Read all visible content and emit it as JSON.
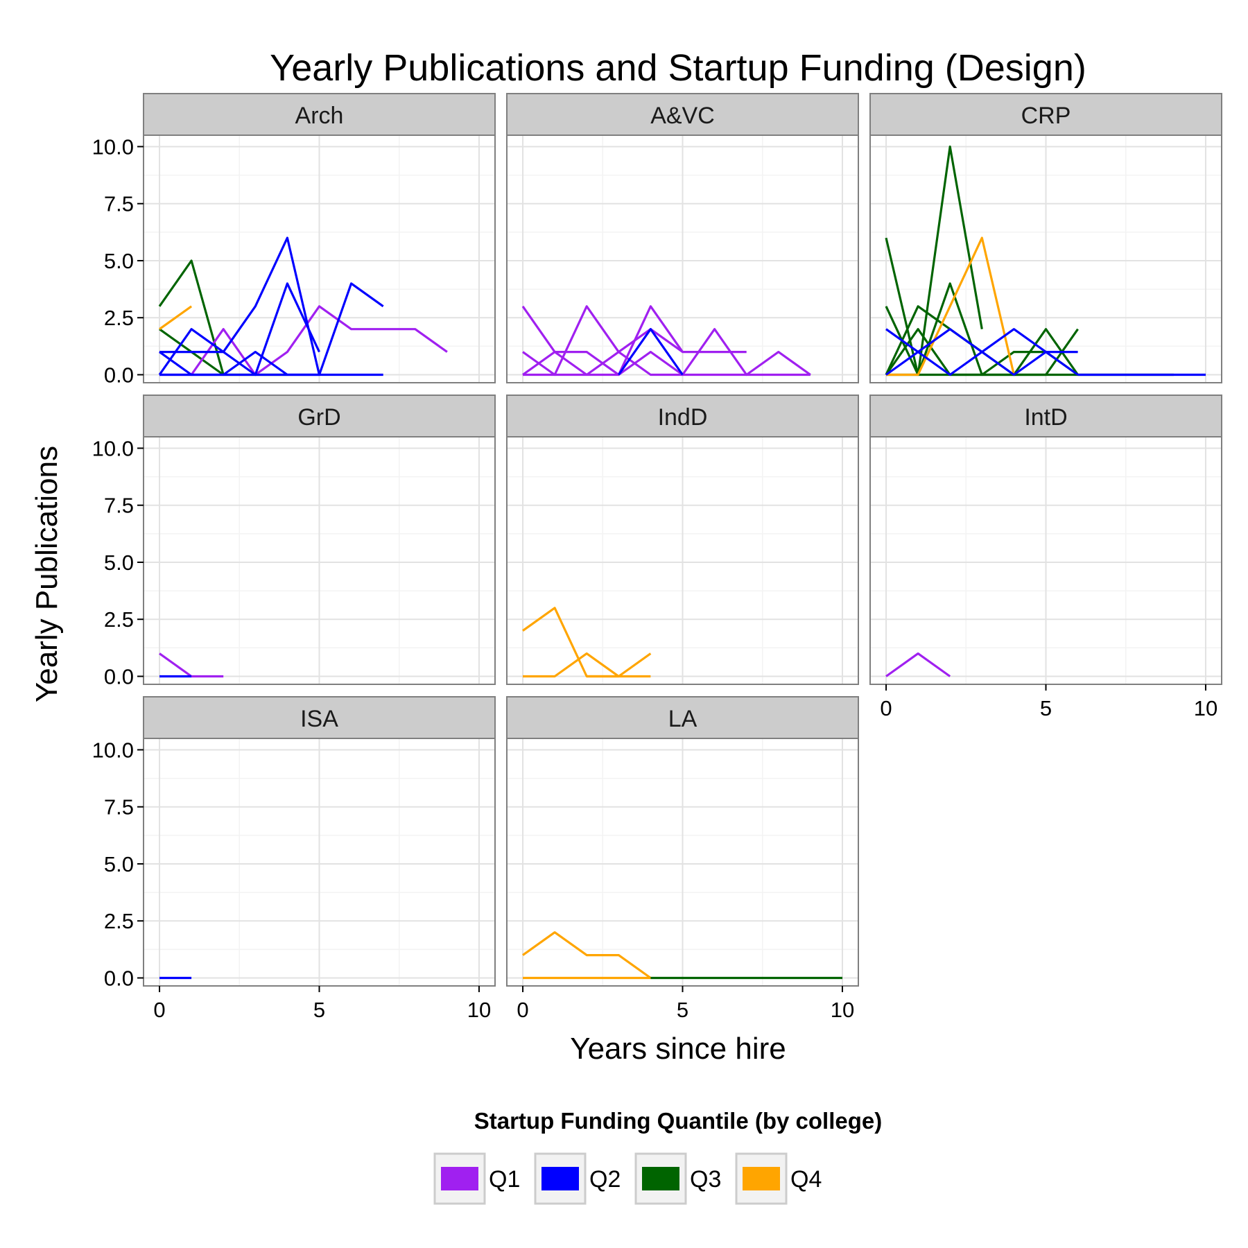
{
  "chart_data": {
    "type": "line",
    "title": "Yearly Publications and Startup Funding (Design)",
    "xlabel": "Years since hire",
    "ylabel": "Yearly Publications",
    "xlim": [
      -0.5,
      10.5
    ],
    "ylim": [
      -0.35,
      10.5
    ],
    "x_ticks": [
      0,
      5,
      10
    ],
    "x_tick_labels": [
      "0",
      "5",
      "10"
    ],
    "y_ticks": [
      0,
      2.5,
      5,
      7.5,
      10
    ],
    "y_tick_labels": [
      "0.0",
      "2.5",
      "5.0",
      "7.5",
      "10.0"
    ],
    "grid": true,
    "legend": {
      "title": "Startup Funding Quantile (by college)",
      "position": "bottom",
      "entries": [
        {
          "key": "Q1",
          "label": "Q1",
          "color": "#A020F0"
        },
        {
          "key": "Q2",
          "label": "Q2",
          "color": "#0000FF"
        },
        {
          "key": "Q3",
          "label": "Q3",
          "color": "#006400"
        },
        {
          "key": "Q4",
          "label": "Q4",
          "color": "#FFA500"
        }
      ]
    },
    "panels": [
      {
        "name": "Arch",
        "series": [
          {
            "quantile": "Q3",
            "x": [
              0,
              1,
              2,
              3,
              4
            ],
            "y": [
              3,
              5,
              0,
              0,
              0
            ]
          },
          {
            "quantile": "Q3",
            "x": [
              0,
              1,
              2
            ],
            "y": [
              2,
              1,
              0
            ]
          },
          {
            "quantile": "Q4",
            "x": [
              0,
              1
            ],
            "y": [
              2,
              3
            ]
          },
          {
            "quantile": "Q1",
            "x": [
              0,
              1,
              2,
              3,
              4,
              5,
              6,
              7,
              8,
              9
            ],
            "y": [
              0,
              0,
              2,
              0,
              1,
              3,
              2,
              2,
              2,
              1
            ]
          },
          {
            "quantile": "Q2",
            "x": [
              0,
              1,
              2,
              3,
              4,
              5
            ],
            "y": [
              1,
              0,
              0,
              1,
              0,
              0
            ]
          },
          {
            "quantile": "Q2",
            "x": [
              0,
              1,
              2,
              3,
              4,
              5
            ],
            "y": [
              1,
              1,
              1,
              0,
              4,
              1
            ]
          },
          {
            "quantile": "Q2",
            "x": [
              0,
              1,
              2,
              3,
              4,
              5,
              6,
              7
            ],
            "y": [
              0,
              2,
              1,
              3,
              6,
              0,
              4,
              3
            ]
          },
          {
            "quantile": "Q2",
            "x": [
              0,
              1,
              2,
              3,
              4,
              5,
              6,
              7
            ],
            "y": [
              0,
              0,
              0,
              0,
              0,
              0,
              0,
              0
            ]
          }
        ]
      },
      {
        "name": "A&VC",
        "series": [
          {
            "quantile": "Q1",
            "x": [
              0,
              1,
              2,
              3,
              4,
              5,
              6,
              7
            ],
            "y": [
              3,
              1,
              1,
              0,
              3,
              1,
              1,
              1
            ]
          },
          {
            "quantile": "Q1",
            "x": [
              0,
              1,
              2,
              3,
              4,
              5,
              6,
              7,
              8,
              9
            ],
            "y": [
              1,
              0,
              3,
              1,
              0,
              0,
              2,
              0,
              1,
              0
            ]
          },
          {
            "quantile": "Q1",
            "x": [
              0,
              1,
              2,
              3,
              4,
              5
            ],
            "y": [
              0,
              1,
              0,
              1,
              2,
              1
            ]
          },
          {
            "quantile": "Q1",
            "x": [
              0,
              1,
              2,
              3,
              4,
              5,
              6,
              7,
              8,
              9
            ],
            "y": [
              0,
              0,
              0,
              0,
              1,
              0,
              0,
              0,
              0,
              0
            ]
          },
          {
            "quantile": "Q2",
            "x": [
              3,
              4,
              5
            ],
            "y": [
              0,
              2,
              0
            ]
          }
        ]
      },
      {
        "name": "CRP",
        "series": [
          {
            "quantile": "Q3",
            "x": [
              0,
              1,
              2,
              3
            ],
            "y": [
              6,
              0,
              10,
              2
            ]
          },
          {
            "quantile": "Q3",
            "x": [
              0,
              1,
              2,
              3,
              4,
              5,
              6
            ],
            "y": [
              3,
              0,
              4,
              0,
              1,
              1,
              0
            ]
          },
          {
            "quantile": "Q3",
            "x": [
              0,
              1,
              2,
              3,
              4,
              5,
              6
            ],
            "y": [
              0,
              3,
              2,
              1,
              0,
              2,
              0
            ]
          },
          {
            "quantile": "Q3",
            "x": [
              0,
              1,
              2,
              3,
              4,
              5,
              6
            ],
            "y": [
              0,
              2,
              0,
              0,
              0,
              0,
              2
            ]
          },
          {
            "quantile": "Q3",
            "x": [
              0,
              1,
              2,
              3,
              4,
              5,
              6,
              7,
              8,
              9
            ],
            "y": [
              0,
              0,
              0,
              0,
              0,
              0,
              0,
              0,
              0,
              0
            ]
          },
          {
            "quantile": "Q4",
            "x": [
              0,
              1,
              2,
              3,
              4
            ],
            "y": [
              0,
              0,
              3,
              6,
              0
            ]
          },
          {
            "quantile": "Q2",
            "x": [
              0,
              1,
              2,
              3,
              4,
              5,
              6
            ],
            "y": [
              2,
              1,
              0,
              1,
              2,
              1,
              0
            ]
          },
          {
            "quantile": "Q2",
            "x": [
              0,
              1,
              2,
              3,
              4,
              5,
              6
            ],
            "y": [
              0,
              1,
              2,
              1,
              0,
              1,
              1
            ]
          },
          {
            "quantile": "Q2",
            "x": [
              6,
              7,
              8,
              9,
              10
            ],
            "y": [
              0,
              0,
              0,
              0,
              0
            ]
          }
        ]
      },
      {
        "name": "GrD",
        "series": [
          {
            "quantile": "Q1",
            "x": [
              0,
              1,
              2
            ],
            "y": [
              1,
              0,
              0
            ]
          },
          {
            "quantile": "Q2",
            "x": [
              0,
              1
            ],
            "y": [
              0,
              0
            ]
          }
        ]
      },
      {
        "name": "IndD",
        "series": [
          {
            "quantile": "Q4",
            "x": [
              0,
              1,
              2,
              3
            ],
            "y": [
              2,
              3,
              0,
              0
            ]
          },
          {
            "quantile": "Q4",
            "x": [
              0,
              1,
              2,
              3,
              4
            ],
            "y": [
              0,
              0,
              1,
              0,
              1
            ]
          },
          {
            "quantile": "Q4",
            "x": [
              2,
              3,
              4
            ],
            "y": [
              0,
              0,
              0
            ]
          }
        ]
      },
      {
        "name": "IntD",
        "series": [
          {
            "quantile": "Q1",
            "x": [
              0,
              1,
              2
            ],
            "y": [
              0,
              1,
              0
            ]
          }
        ]
      },
      {
        "name": "ISA",
        "series": [
          {
            "quantile": "Q2",
            "x": [
              0,
              1
            ],
            "y": [
              0,
              0
            ]
          }
        ]
      },
      {
        "name": "LA",
        "series": [
          {
            "quantile": "Q4",
            "x": [
              0,
              1,
              2,
              3,
              4
            ],
            "y": [
              1,
              2,
              1,
              1,
              0
            ]
          },
          {
            "quantile": "Q4",
            "x": [
              0,
              1,
              2,
              3,
              4
            ],
            "y": [
              0,
              0,
              0,
              0,
              0
            ]
          },
          {
            "quantile": "Q3",
            "x": [
              4,
              5,
              6,
              7,
              8,
              9,
              10
            ],
            "y": [
              0,
              0,
              0,
              0,
              0,
              0,
              0
            ]
          }
        ]
      }
    ]
  }
}
